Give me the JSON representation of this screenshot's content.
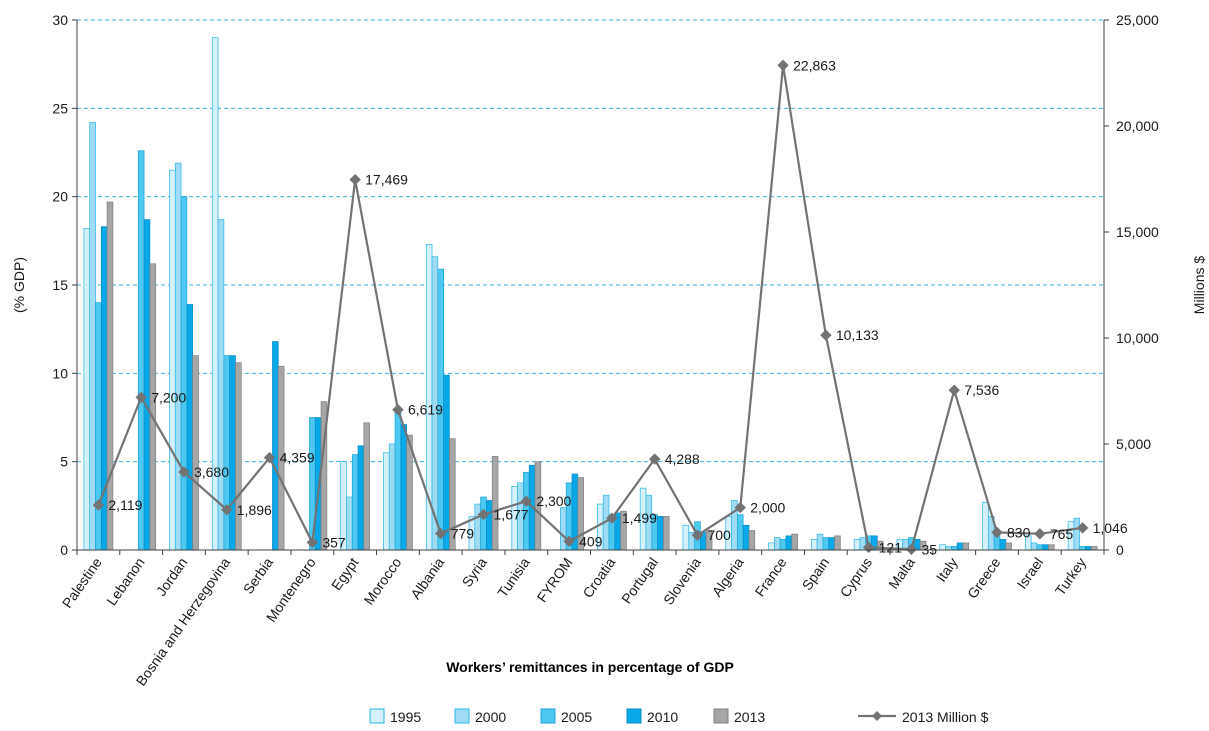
{
  "chart_data": {
    "type": "bar",
    "xlabel": "Workers’ remittances in percentage of GDP",
    "ylabel": "(% GDP)",
    "y2label": "Millions $",
    "ylim": [
      0,
      30
    ],
    "y2lim": [
      0,
      25000
    ],
    "yticks": [
      "0",
      "5",
      "10",
      "15",
      "20",
      "25",
      "30"
    ],
    "y2ticks": [
      "0",
      "5,000",
      "10,000",
      "15,000",
      "20,000",
      "25,000"
    ],
    "grid": true,
    "legend_position": "bottom",
    "categories": [
      "Palestine",
      "Lebanon",
      "Jordan",
      "Bosnia and Herzegovina",
      "Serbia",
      "Montenegro",
      "Egypt",
      "Morocco",
      "Albania",
      "Syria",
      "Tunisia",
      "FYROM",
      "Croatia",
      "Portugal",
      "Slovenia",
      "Algeria",
      "France",
      "Spain",
      "Cyprus",
      "Malta",
      "Italy",
      "Greece",
      "Israel",
      "Turkey"
    ],
    "series": [
      {
        "name": "1995",
        "type": "bar",
        "color": "#d4f0fb",
        "stroke": "#29b6e6",
        "values": [
          18.2,
          null,
          21.5,
          29.0,
          null,
          null,
          5.0,
          5.5,
          17.3,
          1.9,
          3.6,
          null,
          2.6,
          3.5,
          1.4,
          1.9,
          0.4,
          0.6,
          0.6,
          0.6,
          0.3,
          2.7,
          0.8,
          1.6
        ]
      },
      {
        "name": "2000",
        "type": "bar",
        "color": "#9fdcf4",
        "stroke": "#29b6e6",
        "values": [
          24.2,
          null,
          21.9,
          18.7,
          null,
          null,
          3.0,
          6.0,
          16.6,
          2.6,
          3.8,
          2.4,
          3.1,
          3.1,
          1.0,
          2.8,
          0.7,
          0.9,
          0.7,
          0.6,
          0.2,
          1.9,
          0.4,
          1.8
        ]
      },
      {
        "name": "2005",
        "type": "bar",
        "color": "#4dc8f0",
        "stroke": "#1aa3d6",
        "values": [
          14.0,
          22.6,
          20.0,
          11.0,
          null,
          7.5,
          5.4,
          7.9,
          15.9,
          3.0,
          4.4,
          3.8,
          2.0,
          2.0,
          1.6,
          2.0,
          0.6,
          0.7,
          0.8,
          0.7,
          0.2,
          0.9,
          0.3,
          0.2
        ]
      },
      {
        "name": "2010",
        "type": "bar",
        "color": "#08a8e8",
        "stroke": "#0a8cc4",
        "values": [
          18.3,
          18.7,
          13.9,
          11.0,
          11.8,
          7.5,
          5.9,
          7.1,
          9.9,
          2.8,
          4.8,
          4.3,
          2.1,
          1.9,
          1.0,
          1.4,
          0.8,
          0.7,
          0.8,
          0.6,
          0.4,
          0.6,
          0.3,
          0.2
        ]
      },
      {
        "name": "2013",
        "type": "bar",
        "color": "#a6a6a6",
        "stroke": "#7f7f7f",
        "values": [
          19.7,
          16.2,
          11.0,
          10.6,
          10.4,
          8.4,
          7.2,
          6.5,
          6.3,
          5.3,
          5.0,
          4.1,
          2.2,
          1.9,
          1.1,
          1.1,
          0.9,
          0.8,
          0.5,
          0.5,
          0.4,
          0.4,
          0.3,
          0.2
        ]
      },
      {
        "name": "2013 Million $",
        "type": "line",
        "axis": "right",
        "color": "#737373",
        "values": [
          2119,
          7200,
          3680,
          1896,
          4359,
          357,
          17469,
          6619,
          779,
          1677,
          2300,
          409,
          1499,
          4288,
          700,
          2000,
          22863,
          10133,
          121,
          35,
          7536,
          830,
          765,
          1046
        ],
        "labels": [
          "2,119",
          "7,200",
          "3,680",
          "1,896",
          "4,359",
          "357",
          "17,469",
          "6,619",
          "779",
          "1,677",
          "2,300",
          "409",
          "1,499",
          "4,288",
          "700",
          "2,000",
          "22,863",
          "10,133",
          "121",
          "35",
          "7,536",
          "830",
          "765",
          "1,046"
        ]
      }
    ]
  }
}
